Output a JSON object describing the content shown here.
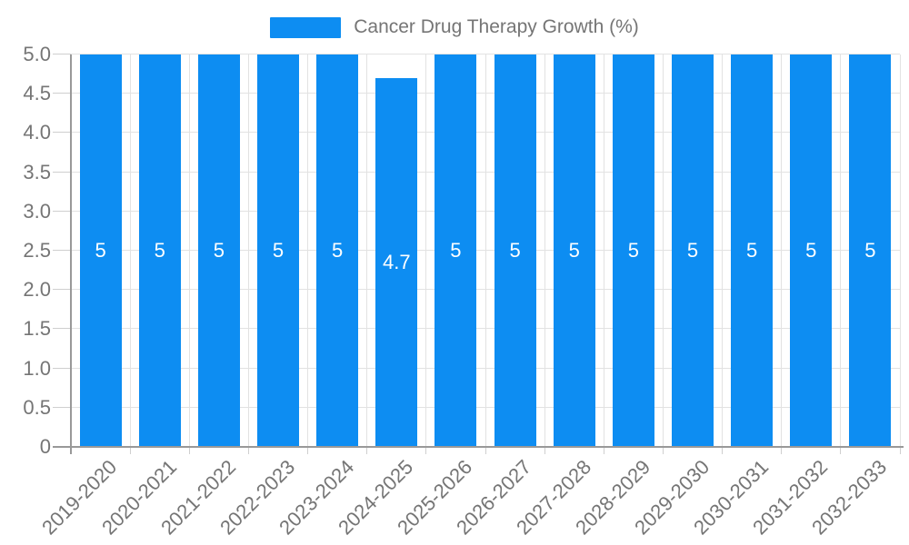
{
  "legend": {
    "label": "Cancer Drug Therapy Growth (%)"
  },
  "chart_data": {
    "type": "bar",
    "title": "Cancer Drug Therapy Growth (%)",
    "categories": [
      "2019-2020",
      "2020-2021",
      "2021-2022",
      "2022-2023",
      "2023-2024",
      "2024-2025",
      "2025-2026",
      "2026-2027",
      "2027-2028",
      "2028-2029",
      "2029-2030",
      "2030-2031",
      "2031-2032",
      "2032-2033"
    ],
    "values": [
      5,
      5,
      5,
      5,
      5,
      4.7,
      5,
      5,
      5,
      5,
      5,
      5,
      5,
      5
    ],
    "value_labels": [
      "5",
      "5",
      "5",
      "5",
      "5",
      "4.7",
      "5",
      "5",
      "5",
      "5",
      "5",
      "5",
      "5",
      "5"
    ],
    "xlabel": "",
    "ylabel": "",
    "ylim": [
      0,
      5
    ],
    "ytick_labels": [
      "0",
      "0.5",
      "1.0",
      "1.5",
      "2.0",
      "2.5",
      "3.0",
      "3.5",
      "4.0",
      "4.5",
      "5.0"
    ],
    "grid": true,
    "legend_position": "top-center",
    "bar_color": "#0d8df2",
    "text_color": "#757575",
    "value_label_color": "#ffffff",
    "grid_color": "#e2e2e2",
    "tick_color": "#cfcfcf",
    "axis_color": "#999999"
  }
}
